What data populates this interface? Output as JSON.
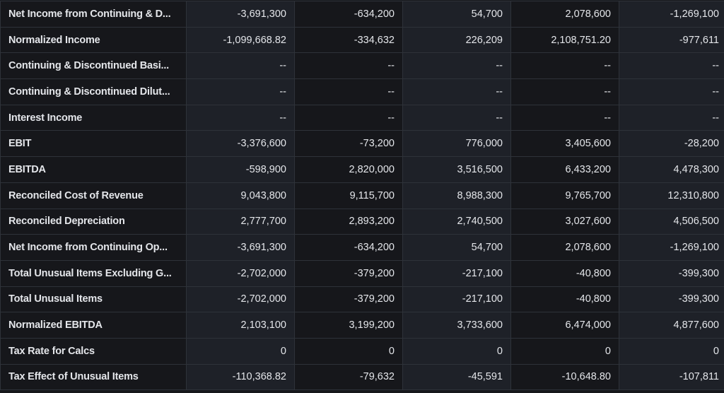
{
  "rows": [
    {
      "label": "Net Income from Continuing & D...",
      "values": [
        "-3,691,300",
        "-634,200",
        "54,700",
        "2,078,600",
        "-1,269,100"
      ]
    },
    {
      "label": "Normalized Income",
      "values": [
        "-1,099,668.82",
        "-334,632",
        "226,209",
        "2,108,751.20",
        "-977,611"
      ]
    },
    {
      "label": "Continuing & Discontinued Basi...",
      "values": [
        "--",
        "--",
        "--",
        "--",
        "--"
      ]
    },
    {
      "label": "Continuing & Discontinued Dilut...",
      "values": [
        "--",
        "--",
        "--",
        "--",
        "--"
      ]
    },
    {
      "label": "Interest Income",
      "values": [
        "--",
        "--",
        "--",
        "--",
        "--"
      ]
    },
    {
      "label": "EBIT",
      "values": [
        "-3,376,600",
        "-73,200",
        "776,000",
        "3,405,600",
        "-28,200"
      ]
    },
    {
      "label": "EBITDA",
      "values": [
        "-598,900",
        "2,820,000",
        "3,516,500",
        "6,433,200",
        "4,478,300"
      ]
    },
    {
      "label": "Reconciled Cost of Revenue",
      "values": [
        "9,043,800",
        "9,115,700",
        "8,988,300",
        "9,765,700",
        "12,310,800"
      ]
    },
    {
      "label": "Reconciled Depreciation",
      "values": [
        "2,777,700",
        "2,893,200",
        "2,740,500",
        "3,027,600",
        "4,506,500"
      ]
    },
    {
      "label": "Net Income from Continuing Op...",
      "values": [
        "-3,691,300",
        "-634,200",
        "54,700",
        "2,078,600",
        "-1,269,100"
      ]
    },
    {
      "label": "Total Unusual Items Excluding G...",
      "values": [
        "-2,702,000",
        "-379,200",
        "-217,100",
        "-40,800",
        "-399,300"
      ]
    },
    {
      "label": "Total Unusual Items",
      "values": [
        "-2,702,000",
        "-379,200",
        "-217,100",
        "-40,800",
        "-399,300"
      ]
    },
    {
      "label": "Normalized EBITDA",
      "values": [
        "2,103,100",
        "3,199,200",
        "3,733,600",
        "6,474,000",
        "4,877,600"
      ]
    },
    {
      "label": "Tax Rate for Calcs",
      "values": [
        "0",
        "0",
        "0",
        "0",
        "0"
      ]
    },
    {
      "label": "Tax Effect of Unusual Items",
      "values": [
        "-110,368.82",
        "-79,632",
        "-45,591",
        "-10,648.80",
        "-107,811"
      ]
    }
  ]
}
